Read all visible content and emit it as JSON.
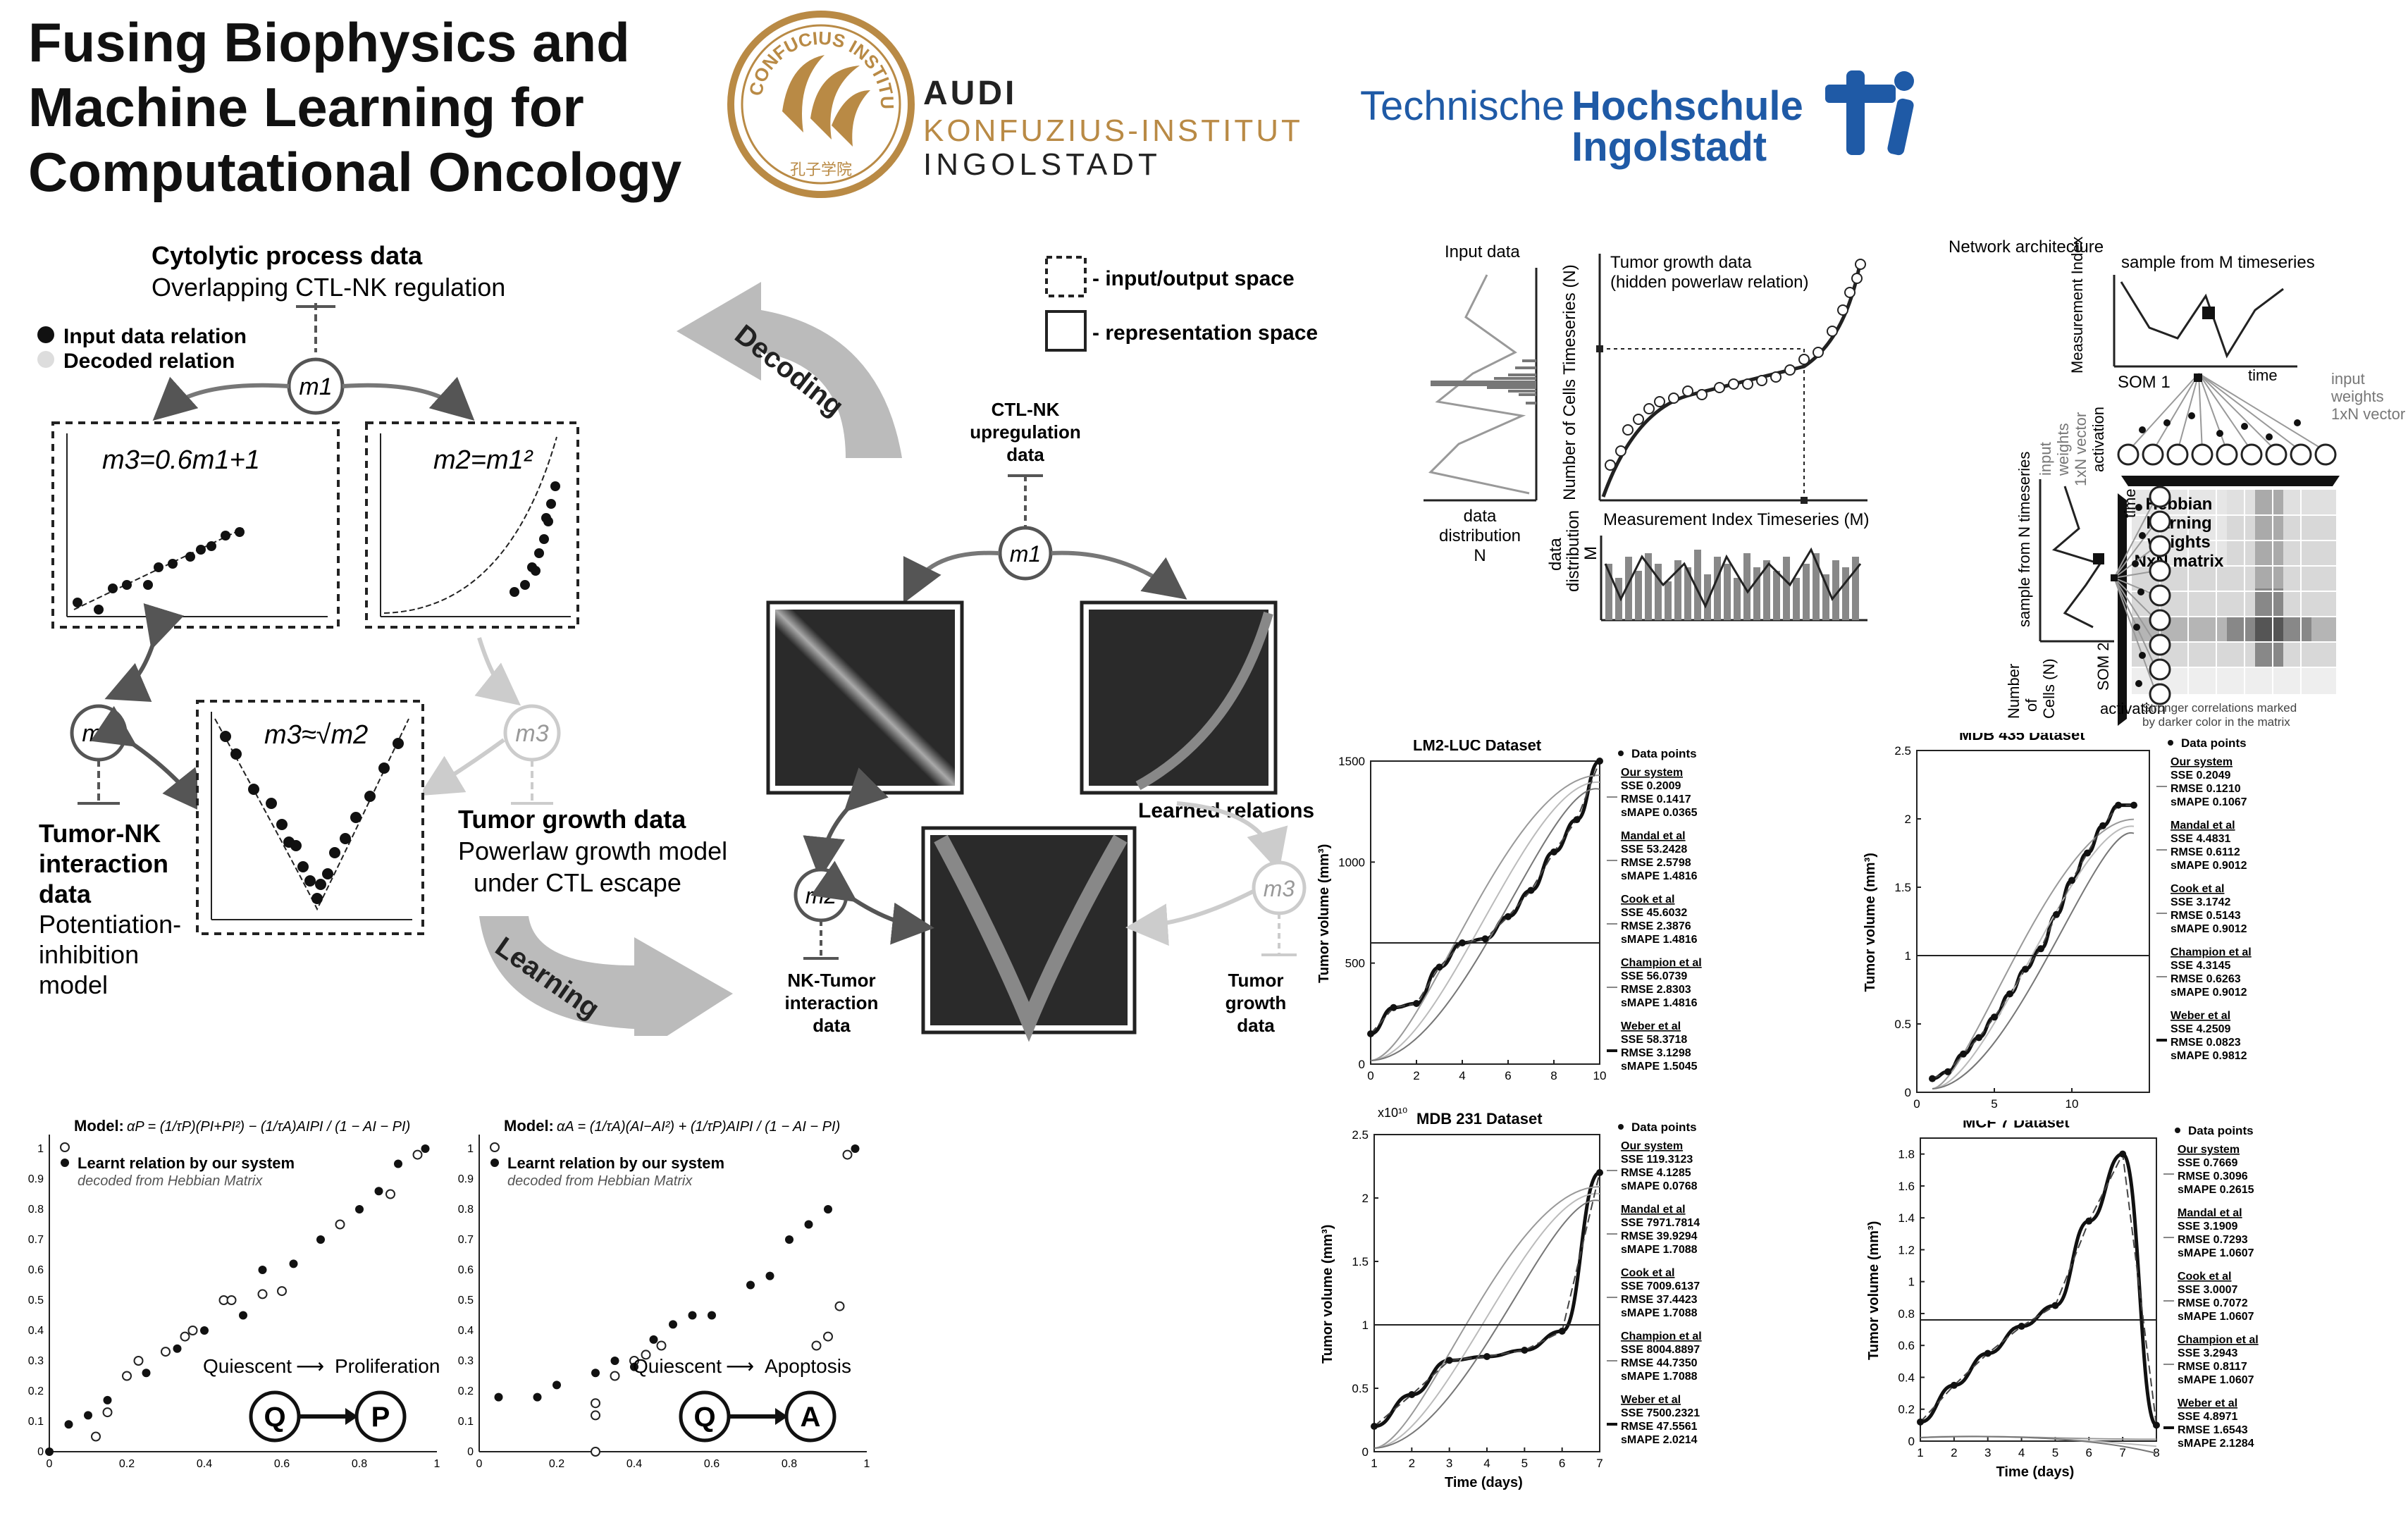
{
  "header": {
    "title_lines": [
      "Fusing Biophysics and",
      "Machine Learning for",
      "Computational Oncology"
    ],
    "logo1": {
      "ring_text": "CONFUCIUS INSTITUTE",
      "seal_text": "孔子学院",
      "line1": "AUDI",
      "line2": "KONFUZIUS-INSTITUT",
      "line3": "INGOLSTADT"
    },
    "logo2": {
      "part1": "Technische",
      "part2": "Hochschule",
      "part3": "Ingolstadt"
    }
  },
  "colors": {
    "gold": "#b98a45",
    "thi_blue": "#1f5aa6",
    "dark": "#111111",
    "grey": "#9a9a9a",
    "light_grey": "#cfcfcf"
  },
  "left_diagram": {
    "cytolytic_title": "Cytolytic process data",
    "cytolytic_sub": "Overlapping CTL-NK regulation",
    "legend_input": "Input data relation",
    "legend_decoded": "Decoded relation",
    "node_m1": "m1",
    "node_m2": "m2",
    "node_m3": "m3",
    "eq_linear": "m3=0.6m1+1",
    "eq_square": "m2=m1²",
    "eq_sqrt": "m3≈√m2",
    "tumor_nk_lines": [
      "Tumor-NK",
      "interaction",
      "data"
    ],
    "potentiation_lines": [
      "Potentiation-",
      "inhibition",
      "model"
    ],
    "tumor_growth_title": "Tumor growth data",
    "tumor_growth_lines": [
      "Powerlaw growth model",
      "under CTL escape"
    ],
    "decoding": "Decoding",
    "learning": "Learning"
  },
  "middle_diagram": {
    "legend_io": "- input/output space",
    "legend_rep": "- representation space",
    "ctl_nk_lines": [
      "CTL-NK",
      "upregulation",
      "data"
    ],
    "learned_relations": "Learned relations",
    "nk_tumor_lines": [
      "NK-Tumor",
      "interaction",
      "data"
    ],
    "tumor_growth_lines": [
      "Tumor",
      "growth",
      "data"
    ]
  },
  "top_right_left": {
    "input_data": "Input data",
    "data_distribution_lines": [
      "data",
      "distribution",
      "N"
    ],
    "ylabel": "Number of Cells Timeseries (N)",
    "tumor_growth_title": "Tumor growth data",
    "tumor_growth_sub": "(hidden powerlaw relation)",
    "measurement_title": "Measurement Index Timeseries (M)",
    "data_dist_m_lines": [
      "data",
      "distribution",
      "M"
    ]
  },
  "network": {
    "title": "Network architecture",
    "sample_m": "sample from M timeseries",
    "meas_index": "Measurement Index (M)",
    "time": "time",
    "som1": "SOM 1",
    "input_weights_lines": [
      "input",
      "weights",
      "1xN vector"
    ],
    "input_weights_left_lines": [
      "input",
      "weights",
      "1xN vector"
    ],
    "activation": "activation",
    "hebbian_lines": [
      "Hebbian",
      "learning",
      "weights",
      "NxN matrix"
    ],
    "sample_n": "sample from N timeseries",
    "number_cells_lines": [
      "Number",
      "of",
      "Cells (N)"
    ],
    "som2": "SOM 2",
    "activation2": "activation",
    "time2": "time",
    "note_lines": [
      "Stronger correlations marked",
      "by darker color in the matrix"
    ]
  },
  "bottom_left": {
    "left": {
      "model_label": "Model:",
      "formula": "αP = (1/τP)(PI+PI²) − (1/τA)AIPI / (1 − AI − PI)",
      "learnt": "Learnt relation by our system",
      "decoded": "decoded from Hebbian Matrix",
      "transition_from": "Quiescent",
      "transition_to": "Proliferation",
      "node_a": "Q",
      "node_b": "P",
      "xticks": [
        "0",
        "0.2",
        "0.4",
        "0.6",
        "0.8",
        "1"
      ],
      "yticks": [
        "0",
        "0.1",
        "0.2",
        "0.3",
        "0.4",
        "0.5",
        "0.6",
        "0.7",
        "0.8",
        "0.9",
        "1"
      ]
    },
    "right": {
      "model_label": "Model:",
      "formula": "αA = (1/τA)(AI−AI²) + (1/τP)AIPI / (1 − AI − PI)",
      "learnt": "Learnt relation by our system",
      "decoded": "decoded from Hebbian Matrix",
      "transition_from": "Quiescent",
      "transition_to": "Apoptosis",
      "node_a": "Q",
      "node_b": "A",
      "xticks": [
        "0",
        "0.2",
        "0.4",
        "0.6",
        "0.8",
        "1"
      ],
      "yticks": [
        "0",
        "0.1",
        "0.2",
        "0.3",
        "0.4",
        "0.5",
        "0.6",
        "0.7",
        "0.8",
        "0.9",
        "1"
      ]
    }
  },
  "chart_data": [
    {
      "type": "line",
      "title": "LM2-LUC Dataset",
      "ylabel": "Tumor volume (mm³)",
      "xlabel": "",
      "xticks": [
        "0",
        "2",
        "4",
        "6",
        "8",
        "10"
      ],
      "yticks": [
        "0",
        "500",
        "1000",
        "1500"
      ],
      "xlim": [
        0,
        10
      ],
      "ylim": [
        0,
        1500
      ],
      "data_points": {
        "x": [
          0,
          1,
          2,
          3,
          4,
          5,
          6,
          7,
          8,
          9,
          10
        ],
        "y": [
          150,
          280,
          300,
          480,
          600,
          620,
          730,
          860,
          1050,
          1210,
          1500
        ]
      },
      "legend": [
        {
          "name": "Data points"
        },
        {
          "name": "Our system",
          "stats": [
            "SSE 0.2009",
            "RMSE 0.1417",
            "sMAPE 0.0365"
          ]
        },
        {
          "name": "Mandal et al",
          "stats": [
            "SSE 53.2428",
            "RMSE 2.5798",
            "sMAPE 1.4816"
          ]
        },
        {
          "name": "Cook et al",
          "stats": [
            "SSE 45.6032",
            "RMSE 2.3876",
            "sMAPE 1.4816"
          ]
        },
        {
          "name": "Champion et al",
          "stats": [
            "SSE 56.0739",
            "RMSE 2.8303",
            "sMAPE 1.4816"
          ]
        },
        {
          "name": "Weber et al",
          "stats": [
            "SSE 58.3718",
            "RMSE 3.1298",
            "sMAPE 1.5045"
          ]
        }
      ]
    },
    {
      "type": "line",
      "title": "MDB 435 Dataset",
      "ylabel": "Tumor volume (mm³)",
      "xlabel": "",
      "xticks": [
        "0",
        "5",
        "10"
      ],
      "yticks": [
        "0",
        "0.5",
        "1",
        "1.5",
        "2",
        "2.5"
      ],
      "xlim": [
        0,
        15
      ],
      "ylim": [
        0,
        2.5
      ],
      "data_points": {
        "x": [
          1,
          2,
          3,
          4,
          5,
          6,
          7,
          8,
          9,
          10,
          11,
          12,
          13,
          14
        ],
        "y": [
          0.1,
          0.15,
          0.28,
          0.4,
          0.55,
          0.72,
          0.9,
          1.05,
          1.3,
          1.55,
          1.75,
          1.95,
          2.1,
          2.1
        ]
      },
      "legend": [
        {
          "name": "Data points"
        },
        {
          "name": "Our system",
          "stats": [
            "SSE 0.2049",
            "RMSE 0.1210",
            "sMAPE 0.1067"
          ]
        },
        {
          "name": "Mandal et al",
          "stats": [
            "SSE 4.4831",
            "RMSE 0.6112",
            "sMAPE 0.9012"
          ]
        },
        {
          "name": "Cook et al",
          "stats": [
            "SSE 3.1742",
            "RMSE 0.5143",
            "sMAPE 0.9012"
          ]
        },
        {
          "name": "Champion et al",
          "stats": [
            "SSE 4.3145",
            "RMSE 0.6263",
            "sMAPE 0.9012"
          ]
        },
        {
          "name": "Weber et al",
          "stats": [
            "SSE 4.2509",
            "RMSE 0.0823",
            "sMAPE 0.9812"
          ]
        }
      ]
    },
    {
      "type": "line",
      "title": "MDB 231 Dataset",
      "ylabel": "Tumor volume (mm³)",
      "xlabel": "Time (days)",
      "scale_note": "x10¹⁰",
      "xticks": [
        "1",
        "2",
        "3",
        "4",
        "5",
        "6",
        "7"
      ],
      "yticks": [
        "0",
        "0.5",
        "1",
        "1.5",
        "2",
        "2.5"
      ],
      "xlim": [
        1,
        7
      ],
      "ylim": [
        0,
        2.5
      ],
      "data_points": {
        "x": [
          1,
          2,
          3,
          4,
          5,
          6,
          7
        ],
        "y": [
          0.2,
          0.45,
          0.72,
          0.75,
          0.8,
          0.95,
          2.2
        ]
      },
      "legend": [
        {
          "name": "Data points"
        },
        {
          "name": "Our system",
          "stats": [
            "SSE 119.3123",
            "RMSE 4.1285",
            "sMAPE 0.0768"
          ]
        },
        {
          "name": "Mandal et al",
          "stats": [
            "SSE 7971.7814",
            "RMSE 39.9294",
            "sMAPE 1.7088"
          ]
        },
        {
          "name": "Cook et al",
          "stats": [
            "SSE 7009.6137",
            "RMSE 37.4423",
            "sMAPE 1.7088"
          ]
        },
        {
          "name": "Champion et al",
          "stats": [
            "SSE 8004.8897",
            "RMSE 44.7350",
            "sMAPE 1.7088"
          ]
        },
        {
          "name": "Weber et al",
          "stats": [
            "SSE 7500.2321",
            "RMSE 47.5561",
            "sMAPE 2.0214"
          ]
        }
      ]
    },
    {
      "type": "line",
      "title": "MCF 7 Dataset",
      "ylabel": "Tumor volume (mm³)",
      "xlabel": "Time (days)",
      "xticks": [
        "1",
        "2",
        "3",
        "4",
        "5",
        "6",
        "7",
        "8"
      ],
      "yticks": [
        "0",
        "0.2",
        "0.4",
        "0.6",
        "0.8",
        "1",
        "1.2",
        "1.4",
        "1.6",
        "1.8"
      ],
      "xlim": [
        1,
        8
      ],
      "ylim": [
        0,
        1.9
      ],
      "data_points": {
        "x": [
          1,
          2,
          3,
          4,
          5,
          6,
          7,
          8
        ],
        "y": [
          0.12,
          0.35,
          0.55,
          0.72,
          0.85,
          1.38,
          1.8,
          0.1
        ]
      },
      "legend": [
        {
          "name": "Data points"
        },
        {
          "name": "Our system",
          "stats": [
            "SSE 0.7669",
            "RMSE 0.3096",
            "sMAPE 0.2615"
          ]
        },
        {
          "name": "Mandal et al",
          "stats": [
            "SSE 3.1909",
            "RMSE 0.7293",
            "sMAPE 1.0607"
          ]
        },
        {
          "name": "Cook et al",
          "stats": [
            "SSE 3.0007",
            "RMSE 0.7072",
            "sMAPE 1.0607"
          ]
        },
        {
          "name": "Champion et al",
          "stats": [
            "SSE 3.2943",
            "RMSE 0.8117",
            "sMAPE 1.0607"
          ]
        },
        {
          "name": "Weber et al",
          "stats": [
            "SSE 4.8971",
            "RMSE 1.6543",
            "sMAPE 2.1284"
          ]
        }
      ]
    }
  ]
}
